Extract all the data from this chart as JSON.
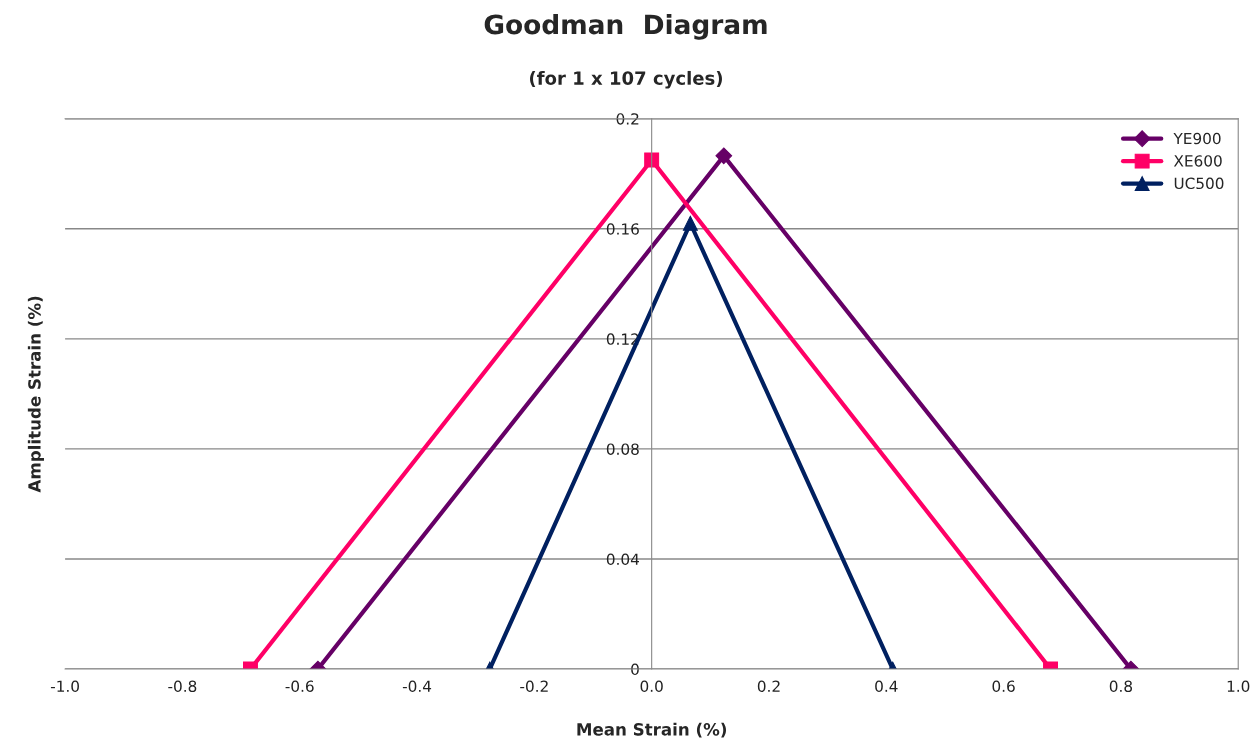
{
  "chart_data": {
    "type": "line",
    "title": "Goodman  Diagram",
    "subtitle": "(for 1 x 107 cycles)",
    "xlabel": "Mean Strain (%)",
    "ylabel": "Amplitude Strain (%)",
    "xlim": [
      -1.0,
      1.0
    ],
    "xticks": [
      {
        "value": -1.0,
        "label": "-1.0"
      },
      {
        "value": -0.8,
        "label": "-0.8"
      },
      {
        "value": -0.6,
        "label": "-0.6"
      },
      {
        "value": -0.4,
        "label": "-0.4"
      },
      {
        "value": -0.2,
        "label": "-0.2"
      },
      {
        "value": 0.0,
        "label": "0.0"
      },
      {
        "value": 0.2,
        "label": "0.2"
      },
      {
        "value": 0.4,
        "label": "0.4"
      },
      {
        "value": 0.6,
        "label": "0.6"
      },
      {
        "value": 0.8,
        "label": "0.8"
      },
      {
        "value": 1.0,
        "label": "1.0"
      }
    ],
    "ylim": [
      0,
      0.2
    ],
    "yticks": [
      0,
      0.04,
      0.08,
      0.12,
      0.16,
      0.2
    ],
    "grid": "y",
    "legend": "top right",
    "line_style": "solid",
    "series": [
      {
        "name": "YE900",
        "color": "#660066",
        "marker": "diamond",
        "x": [
          -0.569,
          0.123,
          0.817
        ],
        "values": [
          0,
          0.1865,
          0
        ]
      },
      {
        "name": "XE600",
        "color": "#ff0066",
        "marker": "square",
        "x": [
          -0.684,
          0.0,
          0.68
        ],
        "values": [
          0,
          0.185,
          0
        ]
      },
      {
        "name": "UC500",
        "color": "#002060",
        "marker": "triangle",
        "x": [
          -0.276,
          0.066,
          0.411
        ],
        "values": [
          0,
          0.162,
          0
        ]
      }
    ]
  }
}
